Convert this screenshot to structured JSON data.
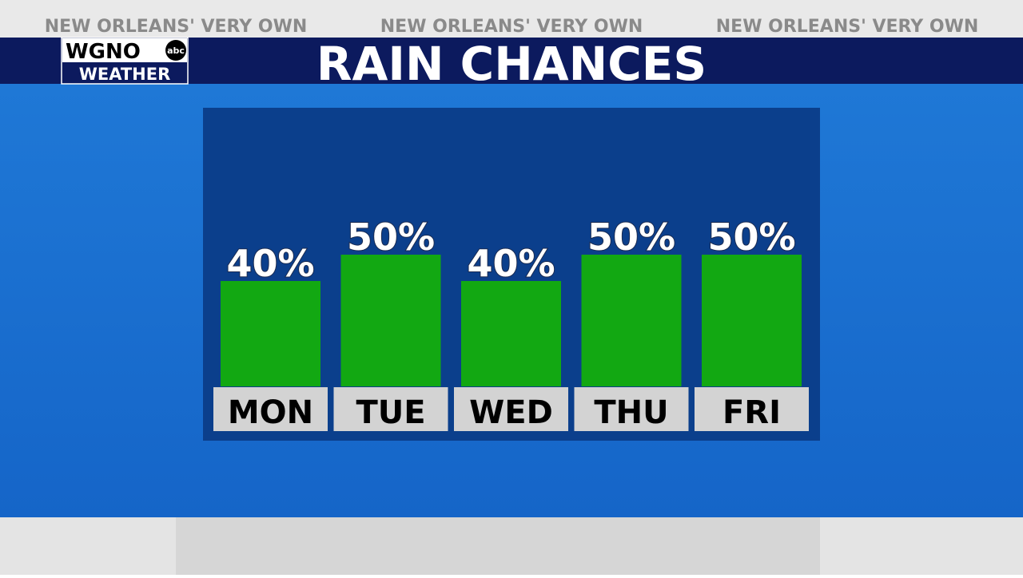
{
  "banner": [
    "NEW ORLEANS' VERY OWN",
    "NEW ORLEANS' VERY OWN",
    "NEW ORLEANS' VERY OWN"
  ],
  "logo": {
    "top": "WGNO",
    "badge": "abc",
    "bottom": "WEATHER"
  },
  "chart_data": {
    "type": "bar",
    "title": "RAIN CHANCES",
    "categories": [
      "MON",
      "TUE",
      "WED",
      "THU",
      "FRI"
    ],
    "values": [
      40,
      50,
      40,
      50,
      50
    ],
    "value_labels": [
      "40%",
      "50%",
      "40%",
      "50%",
      "50%"
    ],
    "color": "#12a812"
  }
}
